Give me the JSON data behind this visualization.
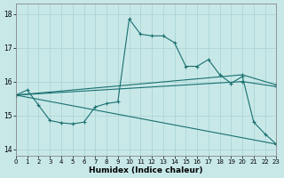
{
  "xlabel": "Humidex (Indice chaleur)",
  "bg_color": "#c8e8e8",
  "grid_color": "#a8d0d0",
  "line_color": "#1a7070",
  "xlim": [
    0,
    23
  ],
  "ylim": [
    13.8,
    18.3
  ],
  "xticks": [
    0,
    1,
    2,
    3,
    4,
    5,
    6,
    7,
    8,
    9,
    10,
    11,
    12,
    13,
    14,
    15,
    16,
    17,
    18,
    19,
    20,
    21,
    22,
    23
  ],
  "yticks": [
    14,
    15,
    16,
    17,
    18
  ],
  "line1_x": [
    0,
    20,
    23
  ],
  "line1_y": [
    15.6,
    16.2,
    15.9
  ],
  "line2_x": [
    0,
    20,
    23
  ],
  "line2_y": [
    15.6,
    16.0,
    15.85
  ],
  "line3_x": [
    0,
    23
  ],
  "line3_y": [
    15.6,
    14.15
  ],
  "curve_x": [
    0,
    1,
    2,
    3,
    4,
    5,
    6,
    7,
    8,
    9,
    10,
    11,
    12,
    13,
    14,
    15,
    16,
    17,
    18,
    19,
    20,
    21,
    22,
    23
  ],
  "curve_y": [
    15.6,
    15.75,
    15.3,
    14.85,
    14.78,
    14.75,
    14.8,
    15.25,
    15.35,
    15.4,
    17.85,
    17.4,
    17.35,
    17.35,
    17.15,
    16.45,
    16.45,
    16.65,
    16.2,
    15.95,
    16.15,
    14.8,
    14.45,
    14.15
  ],
  "marker_size": 2.5
}
